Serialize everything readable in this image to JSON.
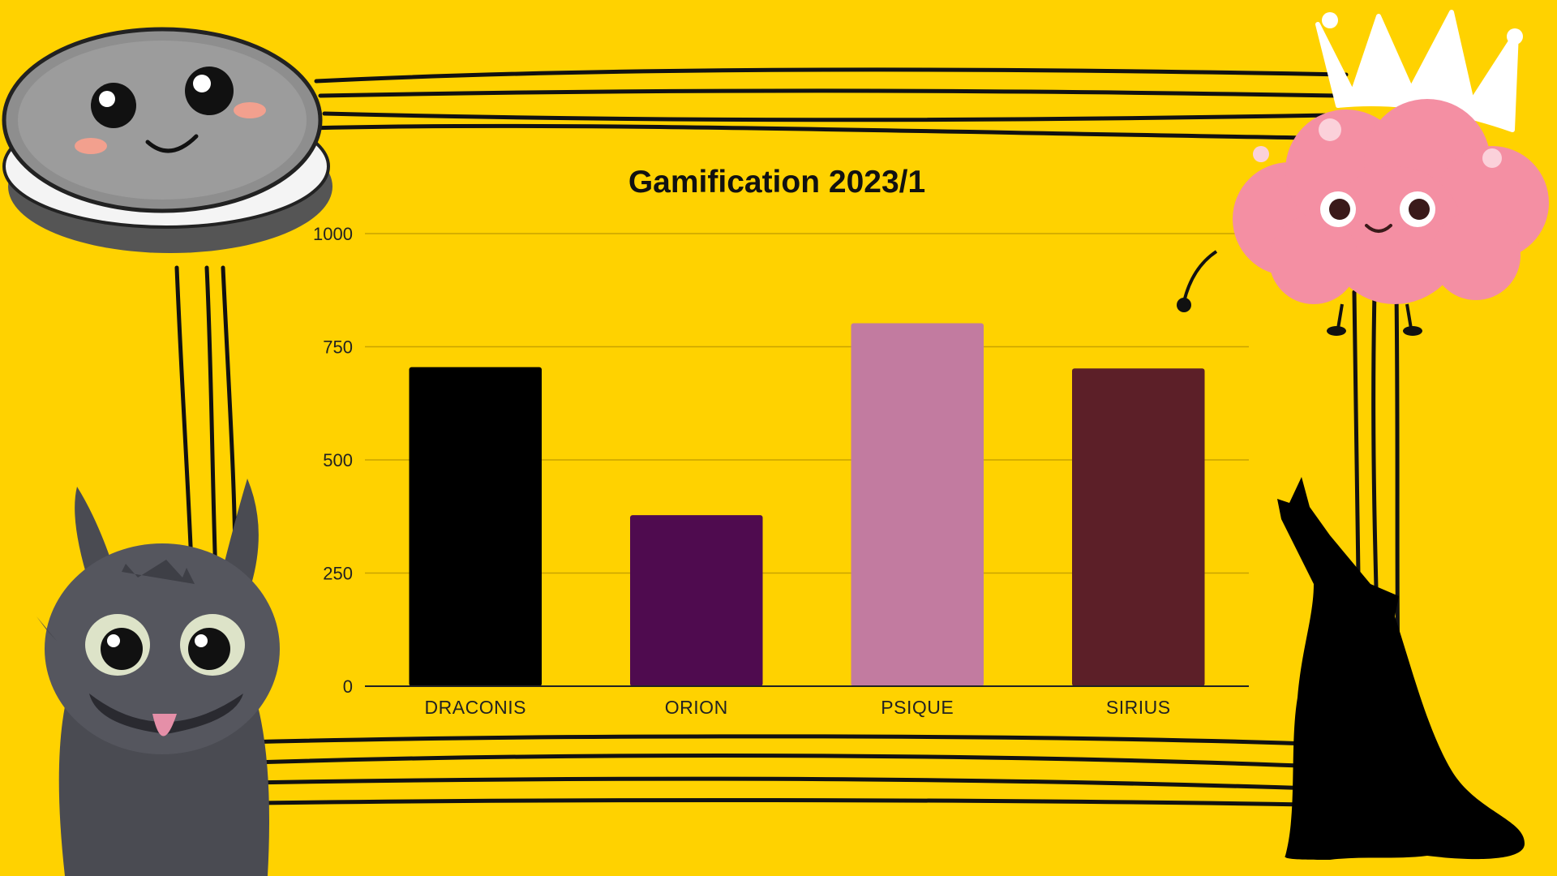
{
  "colors": {
    "background": "#FFD200",
    "gridline": "#C9A300",
    "axis": "#222222"
  },
  "decorations": {
    "top_left": "cookie-character-icon",
    "top_right": "crowned-brain-character-icon",
    "bottom_left": "dragon-character-icon",
    "bottom_right": "howling-wolf-silhouette-icon"
  },
  "chart_data": {
    "type": "bar",
    "title": "Gamification 2023/1",
    "xlabel": "",
    "ylabel": "",
    "categories": [
      "DRACONIS",
      "ORION",
      "PSIQUE",
      "SIRIUS"
    ],
    "values": [
      705,
      378,
      802,
      702
    ],
    "bar_colors": [
      "#000000",
      "#4F0B4F",
      "#C27BA0",
      "#5C1F28"
    ],
    "ylim": [
      0,
      1000
    ],
    "yticks": [
      0,
      250,
      500,
      750,
      1000
    ],
    "grid": true,
    "legend": "none"
  }
}
